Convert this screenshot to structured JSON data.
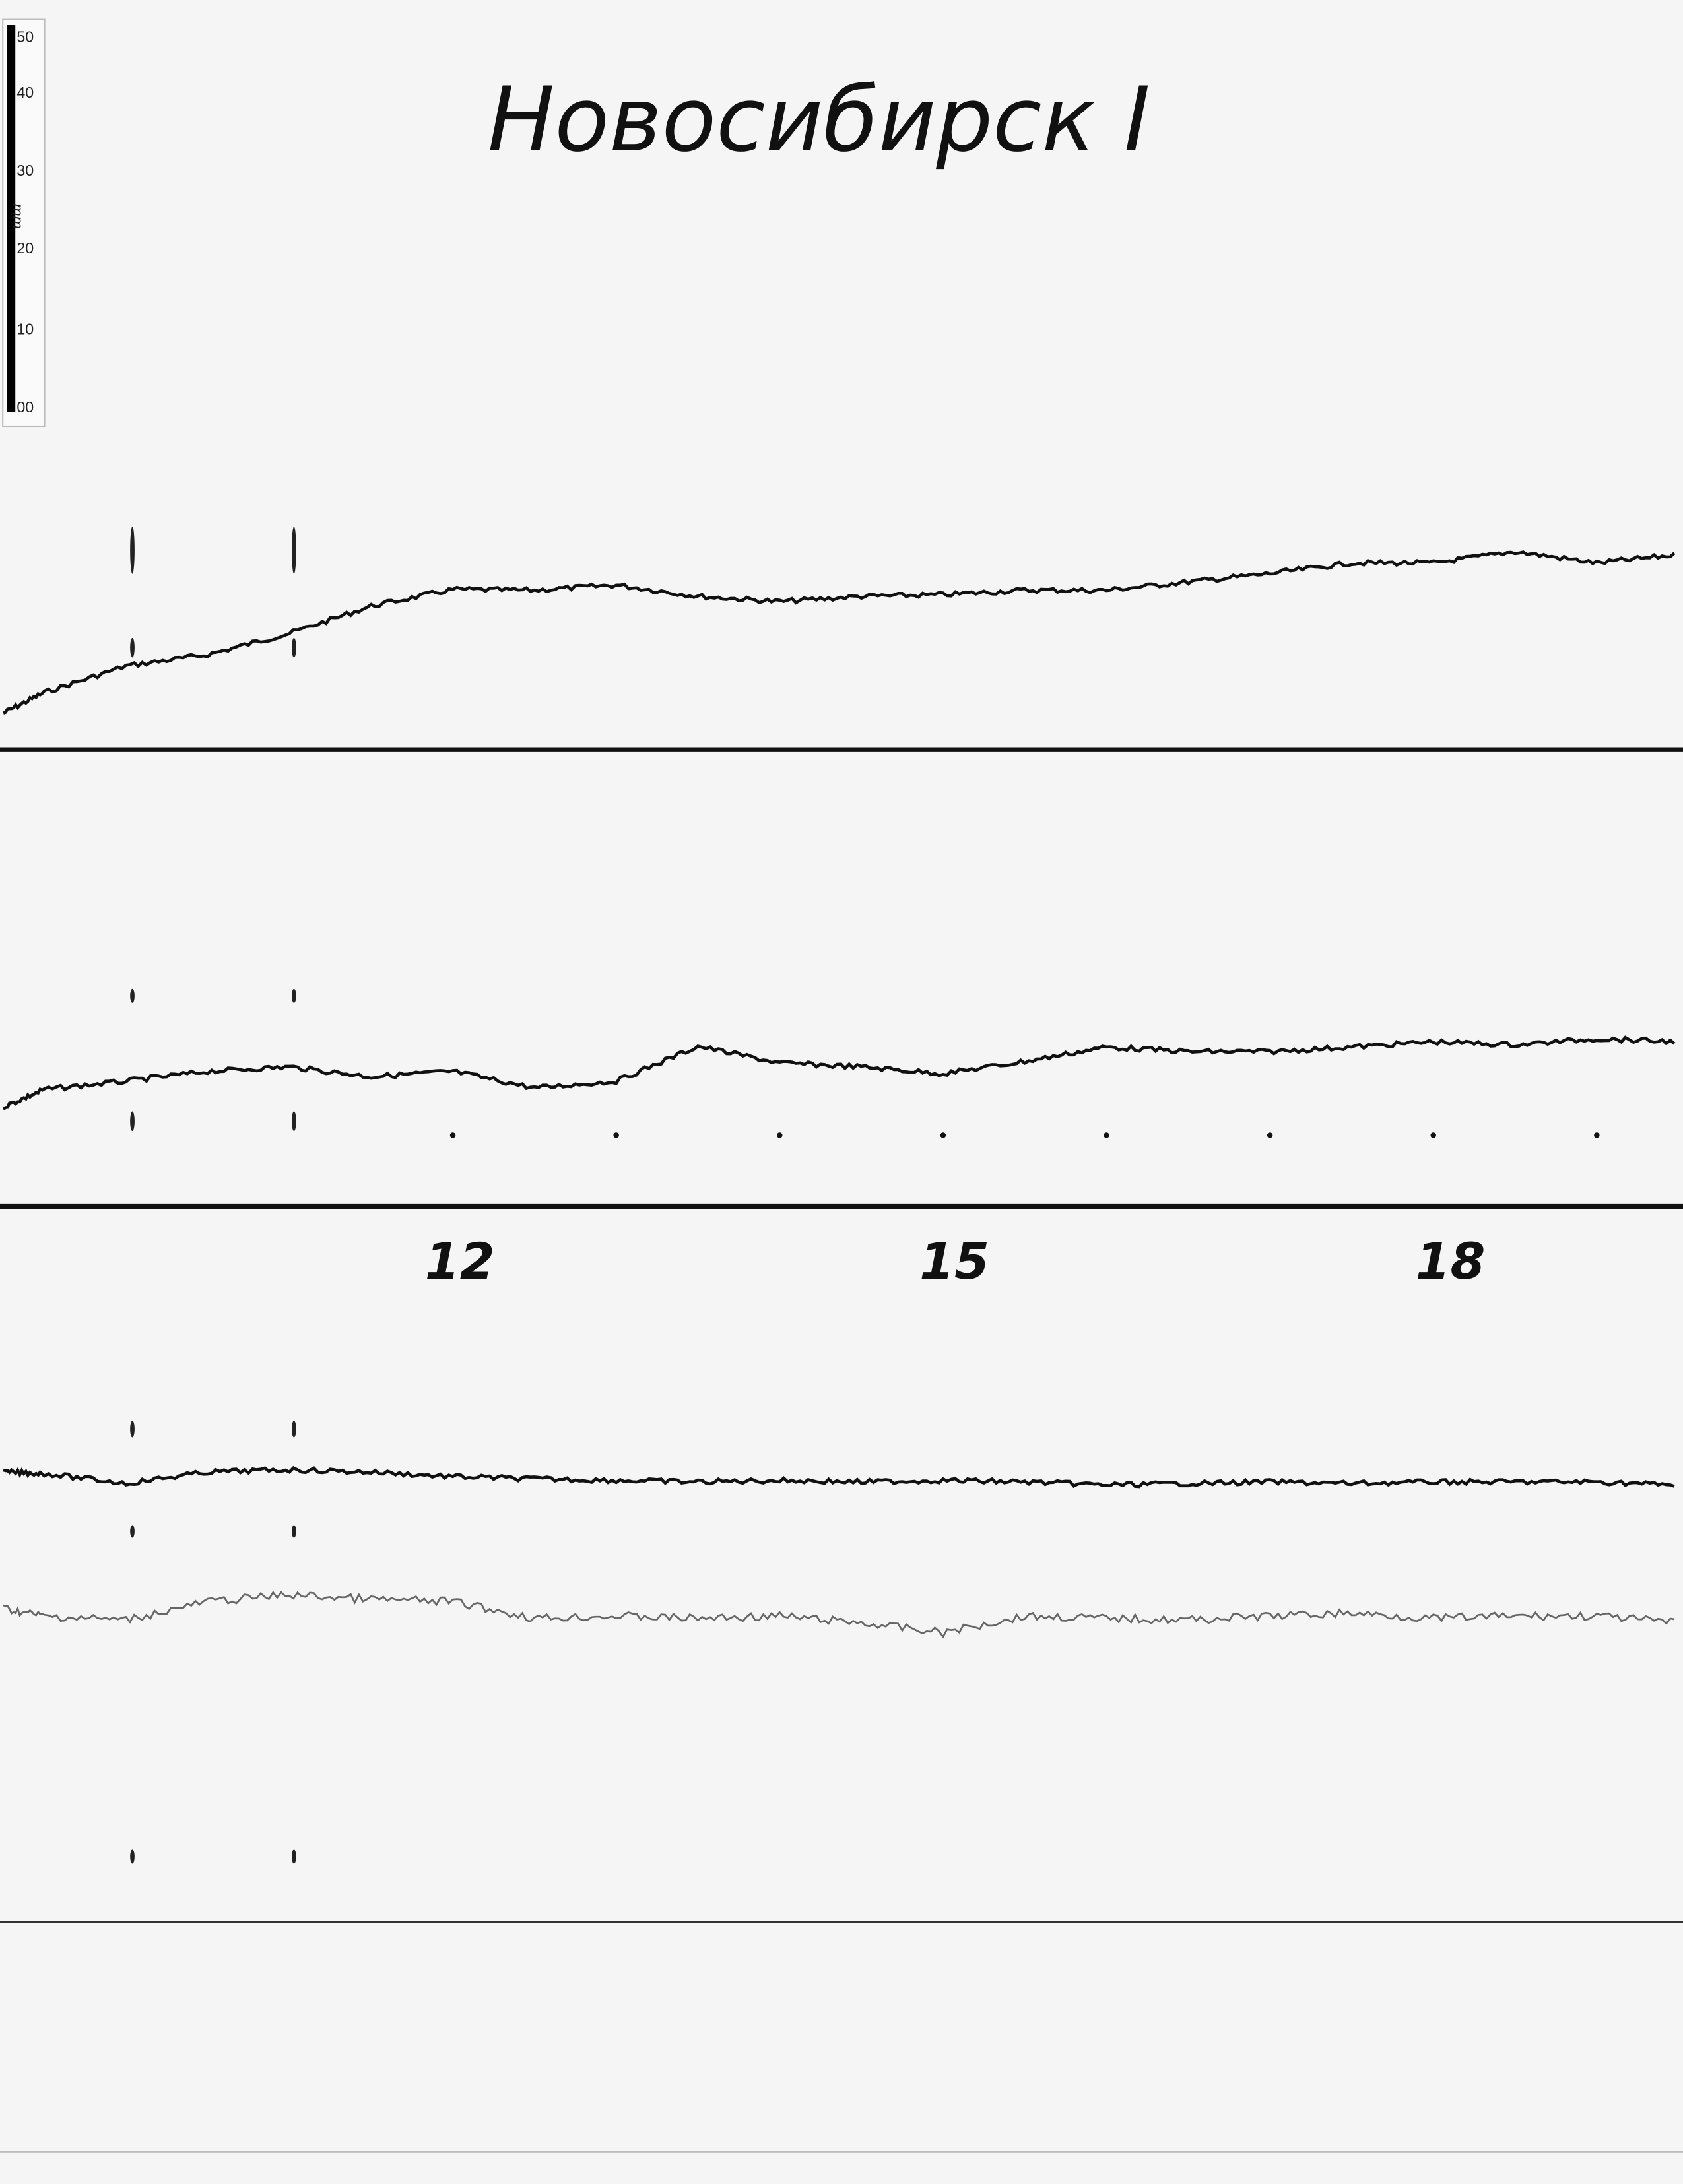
{
  "title": "Новосибирск I",
  "ruler": {
    "unit": "mm",
    "ticks": [
      "50",
      "40",
      "30",
      "20",
      "10",
      "00"
    ]
  },
  "chart_data": {
    "type": "line",
    "xlabel": "",
    "ylabel": "",
    "x_tick_labels": [
      "12",
      "15",
      "18"
    ],
    "x_ticks": [
      12,
      15,
      18
    ],
    "hour_marks": [
      12,
      13,
      14,
      15,
      16,
      17,
      18,
      19
    ],
    "xlim": [
      9.23,
      19.55
    ],
    "grid": false,
    "panels": [
      {
        "baseline": "panel-1",
        "series": [
          {
            "x": [
              9.25,
              9.5,
              10,
              10.5,
              11,
              11.5,
              12,
              12.5,
              13,
              13.5,
              14,
              14.5,
              15,
              15.5,
              16,
              16.5,
              17,
              17.5,
              18,
              18.5,
              19,
              19.5
            ],
            "y": [
              4.8,
              7.5,
              11.0,
              12.5,
              15.3,
              18.9,
              21.1,
              21.0,
              21.7,
              20.2,
              19.5,
              20.2,
              20.4,
              21.0,
              21.0,
              22.1,
              23.2,
              24.6,
              24.6,
              26.1,
              24.6,
              25.7
            ],
            "color": "#111111"
          }
        ]
      },
      {
        "baseline": "panel-2",
        "series": [
          {
            "x": [
              9.25,
              9.5,
              10,
              10.5,
              11,
              11.5,
              12,
              12.5,
              13,
              13.5,
              14,
              14.5,
              15,
              15.5,
              16,
              16.5,
              17,
              17.5,
              18,
              18.5,
              19,
              19.5
            ],
            "y": [
              13.1,
              15.4,
              16.5,
              17.8,
              18.4,
              17.1,
              17.8,
              15.6,
              16.5,
              21.1,
              18.9,
              18.4,
              17.5,
              19.1,
              21.0,
              20.4,
              20.4,
              21.0,
              21.7,
              21.3,
              22.1,
              21.7
            ],
            "color": "#111111"
          }
        ]
      },
      {
        "baseline": "panel-3",
        "series": [
          {
            "x": [
              9.25,
              9.5,
              10,
              10.5,
              11,
              11.5,
              12,
              12.5,
              13,
              13.5,
              14,
              14.5,
              15,
              15.5,
              16,
              16.5,
              17,
              17.5,
              18,
              18.5,
              19,
              19.5
            ],
            "y": [
              59.4,
              59.2,
              57.9,
              59.4,
              59.7,
              59.4,
              58.8,
              58.5,
              58.3,
              58.1,
              58.3,
              58.1,
              58.3,
              58.1,
              57.7,
              57.9,
              58.1,
              57.9,
              58.1,
              58.1,
              58.1,
              57.7
            ],
            "color": "#111111"
          },
          {
            "x": [
              9.25,
              9.5,
              10,
              10.5,
              11,
              11.5,
              12,
              12.5,
              13,
              13.5,
              14,
              14.5,
              15,
              15.5,
              16,
              16.5,
              17,
              17.5,
              18,
              18.5,
              19,
              19.5
            ],
            "y": [
              41.4,
              40.4,
              39.9,
              42.3,
              43.2,
              42.6,
              42.3,
              40.1,
              40.4,
              40.1,
              40.4,
              39.5,
              38.2,
              40.4,
              40.1,
              39.9,
              40.4,
              40.8,
              40.1,
              40.4,
              40.4,
              39.5
            ],
            "color": "#666666"
          }
        ]
      }
    ]
  }
}
